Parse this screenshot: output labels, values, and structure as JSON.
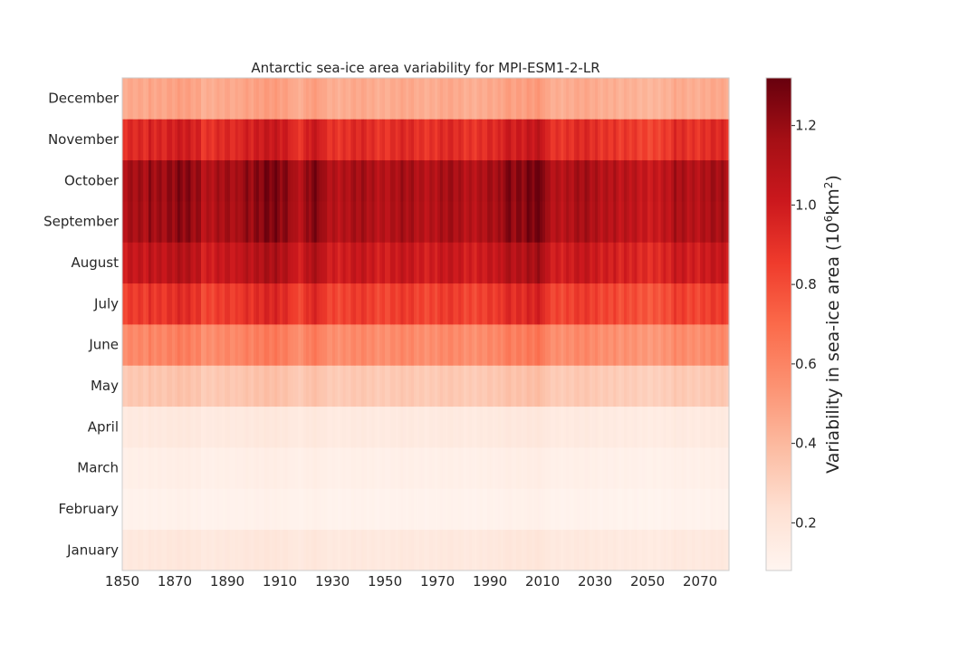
{
  "chart_data": {
    "type": "heatmap",
    "title": "Antarctic sea-ice area variability for MPI-ESM1-2-LR",
    "xlabel": "",
    "ylabel": "",
    "x_range": [
      1850,
      2081
    ],
    "x_ticks": [
      "1850",
      "1870",
      "1890",
      "1910",
      "1930",
      "1950",
      "1970",
      "1990",
      "2010",
      "2030",
      "2050",
      "2070"
    ],
    "x_tick_values": [
      1850,
      1870,
      1890,
      1910,
      1930,
      1950,
      1970,
      1990,
      2010,
      2030,
      2050,
      2070
    ],
    "months": [
      "January",
      "February",
      "March",
      "April",
      "May",
      "June",
      "July",
      "August",
      "September",
      "October",
      "November",
      "December"
    ],
    "monthly_mean_variability": [
      0.17,
      0.1,
      0.12,
      0.16,
      0.33,
      0.57,
      0.84,
      1.01,
      1.12,
      1.13,
      0.91,
      0.45
    ],
    "anomaly_bands": [
      {
        "start": 1860,
        "end": 1880,
        "factor": 1.07
      },
      {
        "start": 1895,
        "end": 1915,
        "factor": 1.1
      },
      {
        "start": 1920,
        "end": 1926,
        "factor": 1.08
      },
      {
        "start": 1995,
        "end": 2011,
        "factor": 1.12
      },
      {
        "start": 2038,
        "end": 2060,
        "factor": 0.93
      }
    ],
    "colorbar": {
      "label": "Variability in sea-ice area (10",
      "label_sup1": "6",
      "label_mid": "km",
      "label_sup2": "2",
      "label_end": ")",
      "min": 0.08,
      "max": 1.32,
      "ticks": [
        "0.2",
        "0.4",
        "0.6",
        "0.8",
        "1.0",
        "1.2"
      ],
      "tick_values": [
        0.2,
        0.4,
        0.6,
        0.8,
        1.0,
        1.2
      ],
      "colormap": "Reds",
      "stops": [
        "#fff5f0",
        "#fee0d2",
        "#fcbba1",
        "#fc9272",
        "#fb6a4a",
        "#ef3b2c",
        "#cb181d",
        "#a50f15",
        "#67000d"
      ]
    },
    "grid": false,
    "legend": "none"
  }
}
